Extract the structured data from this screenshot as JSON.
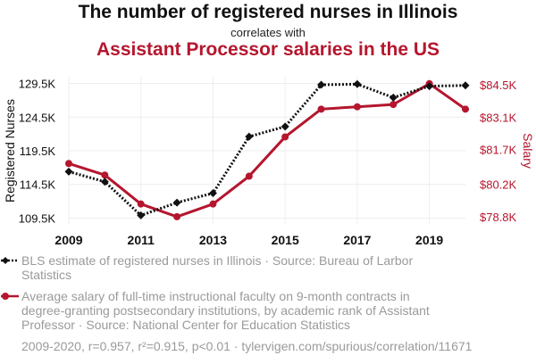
{
  "title": {
    "line1": "The number of registered nurses in Illinois",
    "line2": "correlates with",
    "line3": "Assistant Processor salaries in the US"
  },
  "colors": {
    "series1": "#111111",
    "series2": "#b5162e",
    "grid": "#eeeeee",
    "legend_text": "#9a9a9a"
  },
  "chart_data": {
    "type": "line",
    "x": [
      2009,
      2010,
      2011,
      2012,
      2013,
      2014,
      2015,
      2016,
      2017,
      2018,
      2019,
      2020
    ],
    "xticks": [
      "2009",
      "2011",
      "2013",
      "2015",
      "2017",
      "2019"
    ],
    "xlim": [
      2009,
      2020
    ],
    "ylabel_left": "Registered Nurses",
    "ylabel_right": "Salary",
    "left_axis": {
      "ticks": [
        109500,
        114500,
        119500,
        124500,
        129500
      ],
      "tick_labels": [
        "109.5K",
        "114.5K",
        "119.5K",
        "124.5K",
        "129.5K"
      ],
      "ylim": [
        108500,
        130500
      ]
    },
    "right_axis": {
      "ticks": [
        78800,
        80200,
        81700,
        83100,
        84500
      ],
      "tick_labels": [
        "$78.8K",
        "$80.2K",
        "$81.7K",
        "$83.1K",
        "$84.5K"
      ],
      "ylim": [
        78450,
        84850
      ]
    },
    "series": [
      {
        "name": "BLS estimate of registered nurses in Illinois · Source: Bureau of Larbor Statistics",
        "axis": "left",
        "style": "dotted",
        "marker": "diamond",
        "values": [
          116400,
          114900,
          109900,
          111800,
          113200,
          121600,
          123100,
          129300,
          129400,
          127400,
          129100,
          129200
        ]
      },
      {
        "name": "Average salary of full-time instructional faculty on 9-month contracts in degree-granting postsecondary institutions, by academic rank of Assistant Professor · Source: National Center for Education Statistics",
        "axis": "right",
        "style": "solid",
        "marker": "circle",
        "values": [
          81100,
          80600,
          79350,
          78800,
          79350,
          80550,
          82250,
          83450,
          83550,
          83650,
          84550,
          83450
        ]
      }
    ]
  },
  "legend": {
    "item1": "BLS estimate of registered nurses in Illinois · Source: Bureau of Larbor Statistics",
    "item2": "Average salary of full-time instructional faculty on 9-month contracts in degree-granting postsecondary institutions, by academic rank of Assistant Professor · Source: National Center for Education Statistics"
  },
  "footer": "2009-2020, r=0.957, r²=0.915, p<0.01 · tylervigen.com/spurious/correlation/11671"
}
